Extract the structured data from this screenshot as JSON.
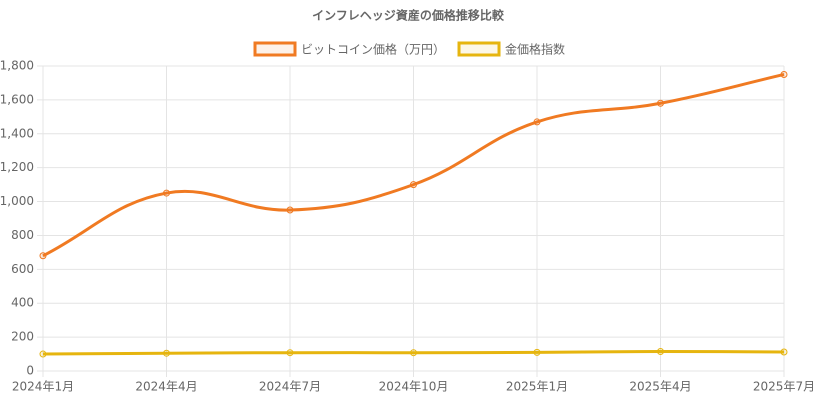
{
  "chart_data": {
    "type": "line",
    "title": "インフレヘッジ資産の価格推移比較",
    "categories": [
      "2024年1月",
      "2024年4月",
      "2024年7月",
      "2024年10月",
      "2025年1月",
      "2025年4月",
      "2025年7月"
    ],
    "series": [
      {
        "name": "ビットコイン価格（万円）",
        "color": "#f07a22",
        "values": [
          680,
          1050,
          950,
          1100,
          1470,
          1580,
          1750
        ]
      },
      {
        "name": "金価格指数",
        "color": "#e6b50f",
        "values": [
          100,
          105,
          108,
          108,
          110,
          115,
          112
        ]
      }
    ],
    "ylim": [
      0,
      1800
    ],
    "yticks": [
      0,
      200,
      400,
      600,
      800,
      {
        "value": 1000,
        "label": "1,000"
      },
      {
        "value": 1200,
        "label": "1,200"
      },
      {
        "value": 1400,
        "label": "1,400"
      },
      {
        "value": 1600,
        "label": "1,600"
      },
      {
        "value": 1800,
        "label": "1,800"
      }
    ],
    "grid": true,
    "legend": "top"
  }
}
